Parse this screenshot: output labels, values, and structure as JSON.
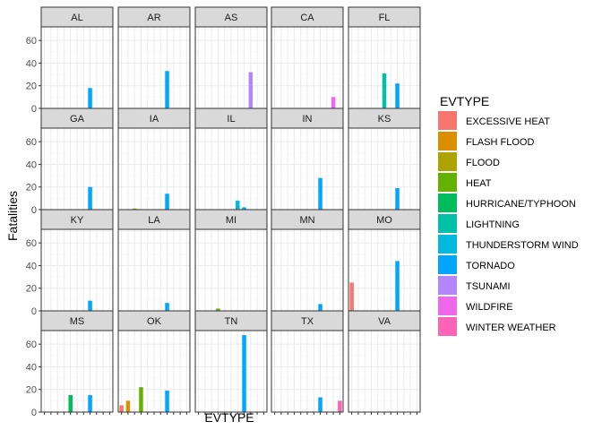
{
  "chart_data": {
    "type": "bar",
    "facet_by": "state",
    "facet_layout": {
      "columns": 5,
      "rows": 4
    },
    "xlabel": "EVTYPE",
    "ylabel": "Fatalities",
    "ylim": [
      0,
      72
    ],
    "yticks": [
      0,
      20,
      40,
      60
    ],
    "x_tick_labels_shown": false,
    "categories": [
      "EXCESSIVE HEAT",
      "FLASH FLOOD",
      "FLOOD",
      "HEAT",
      "HURRICANE/TYPHOON",
      "LIGHTNING",
      "THUNDERSTORM WIND",
      "TORNADO",
      "TSUNAMI",
      "WILDFIRE",
      "WINTER WEATHER"
    ],
    "legend": {
      "title": "EVTYPE",
      "placement": "right",
      "entries": [
        {
          "label": "EXCESSIVE HEAT",
          "color": "#F8766D"
        },
        {
          "label": "FLASH FLOOD",
          "color": "#DB8E00"
        },
        {
          "label": "FLOOD",
          "color": "#AEA200"
        },
        {
          "label": "HEAT",
          "color": "#64B200"
        },
        {
          "label": "HURRICANE/TYPHOON",
          "color": "#00BD5C"
        },
        {
          "label": "LIGHTNING",
          "color": "#00C1A7"
        },
        {
          "label": "THUNDERSTORM WIND",
          "color": "#00BADE"
        },
        {
          "label": "TORNADO",
          "color": "#00A6FF"
        },
        {
          "label": "TSUNAMI",
          "color": "#B385FF"
        },
        {
          "label": "WILDFIRE",
          "color": "#EF67EB"
        },
        {
          "label": "WINTER WEATHER",
          "color": "#FF63B6"
        }
      ]
    },
    "panels": [
      {
        "state": "AL",
        "values": {
          "TORNADO": 18
        }
      },
      {
        "state": "AR",
        "values": {
          "TORNADO": 33
        }
      },
      {
        "state": "AS",
        "values": {
          "TSUNAMI": 32
        }
      },
      {
        "state": "CA",
        "values": {
          "WILDFIRE": 10
        }
      },
      {
        "state": "FL",
        "values": {
          "LIGHTNING": 31,
          "TORNADO": 22
        }
      },
      {
        "state": "GA",
        "values": {
          "TORNADO": 20
        }
      },
      {
        "state": "IA",
        "values": {
          "FLOOD": 1,
          "TORNADO": 14
        }
      },
      {
        "state": "IL",
        "values": {
          "THUNDERSTORM WIND": 8,
          "TORNADO": 2
        }
      },
      {
        "state": "IN",
        "values": {
          "TORNADO": 28
        }
      },
      {
        "state": "KS",
        "values": {
          "TORNADO": 19
        }
      },
      {
        "state": "KY",
        "values": {
          "TORNADO": 9
        }
      },
      {
        "state": "LA",
        "values": {
          "TORNADO": 7
        }
      },
      {
        "state": "MI",
        "values": {
          "HEAT": 2
        }
      },
      {
        "state": "MN",
        "values": {
          "TORNADO": 6
        }
      },
      {
        "state": "MO",
        "values": {
          "EXCESSIVE HEAT": 25,
          "TORNADO": 44
        }
      },
      {
        "state": "MS",
        "values": {
          "HURRICANE/TYPHOON": 15,
          "TORNADO": 15
        }
      },
      {
        "state": "OK",
        "values": {
          "EXCESSIVE HEAT": 6,
          "FLASH FLOOD": 10,
          "HEAT": 22,
          "TORNADO": 19
        }
      },
      {
        "state": "TN",
        "values": {
          "TORNADO": 68
        }
      },
      {
        "state": "TX",
        "values": {
          "TORNADO": 13,
          "WINTER WEATHER": 10
        }
      },
      {
        "state": "VA",
        "values": {}
      }
    ]
  }
}
